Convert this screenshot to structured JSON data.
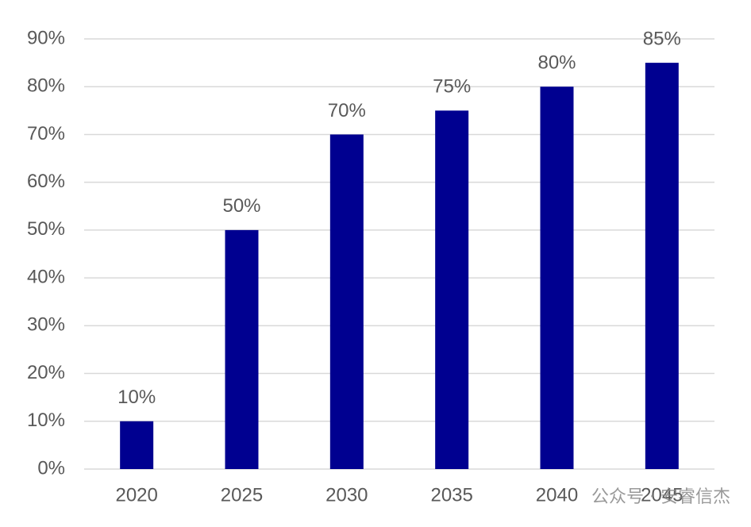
{
  "chart_data": {
    "type": "bar",
    "categories": [
      "2020",
      "2025",
      "2030",
      "2035",
      "2040",
      "2045"
    ],
    "values": [
      10,
      50,
      70,
      75,
      80,
      85
    ],
    "value_labels": [
      "10%",
      "50%",
      "70%",
      "75%",
      "80%",
      "85%"
    ],
    "color": "#000090",
    "ylim": [
      0,
      90
    ],
    "yticks": [
      {
        "value": 0,
        "label": "0%"
      },
      {
        "value": 10,
        "label": "10%"
      },
      {
        "value": 20,
        "label": "20%"
      },
      {
        "value": 30,
        "label": "30%"
      },
      {
        "value": 40,
        "label": "40%"
      },
      {
        "value": 50,
        "label": "50%"
      },
      {
        "value": 60,
        "label": "60%"
      },
      {
        "value": 70,
        "label": "70%"
      },
      {
        "value": 80,
        "label": "80%"
      },
      {
        "value": 90,
        "label": "90%"
      }
    ],
    "grid": true,
    "watermark": "公众号 · 安睿信杰"
  }
}
